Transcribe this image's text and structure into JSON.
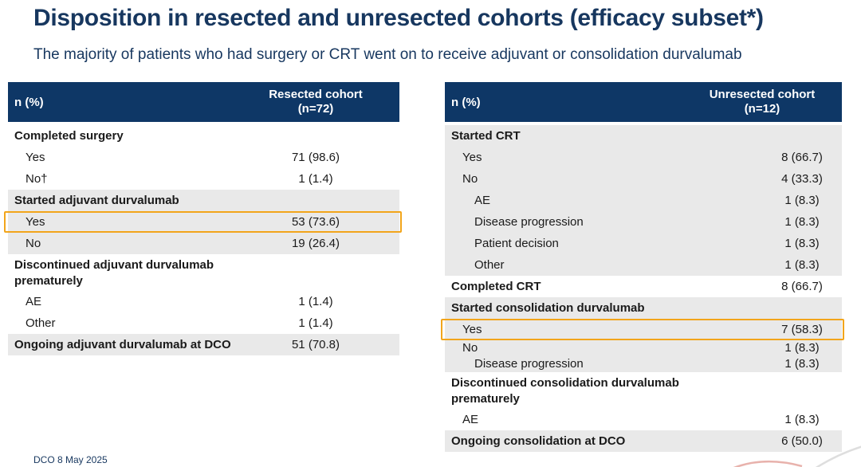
{
  "slide": {
    "title": "Disposition in resected and unresected cohorts (efficacy subset*)",
    "subtitle": "The majority of patients who had surgery or CRT went on to receive adjuvant or consolidation durvalumab",
    "footer": "DCO 8 May 2025"
  },
  "colors": {
    "navy": "#0e3766",
    "titleBlue": "#17375f",
    "rowGray": "#e9e9e9",
    "highlight": "#f2a51b",
    "ink": "#1a1a1a",
    "swooshRed": "#e8b2ac",
    "swooshGray": "#dedede"
  },
  "tables": [
    {
      "id": "resected",
      "header_label": "n (%)",
      "cohort_title": "Resected cohort",
      "cohort_n": "(n=72)",
      "rows": [
        {
          "label": "Completed surgery",
          "value": "",
          "bold": true,
          "indent": 0,
          "shaded": false
        },
        {
          "label": "Yes",
          "value": "71 (98.6)",
          "bold": false,
          "indent": 1,
          "shaded": false
        },
        {
          "label": "No†",
          "value": "1 (1.4)",
          "bold": false,
          "indent": 1,
          "shaded": false
        },
        {
          "label": "Started adjuvant durvalumab",
          "value": "",
          "bold": true,
          "indent": 0,
          "shaded": true
        },
        {
          "label": "Yes",
          "value": "53 (73.6)",
          "bold": false,
          "indent": 1,
          "shaded": true,
          "highlighted": true
        },
        {
          "label": "No",
          "value": "19 (26.4)",
          "bold": false,
          "indent": 1,
          "shaded": true
        },
        {
          "label": "Discontinued adjuvant durvalumab\nprematurely",
          "value": "",
          "bold": true,
          "indent": 0,
          "shaded": false,
          "multiline": true
        },
        {
          "label": "AE",
          "value": "1 (1.4)",
          "bold": false,
          "indent": 1,
          "shaded": false
        },
        {
          "label": "Other",
          "value": "1 (1.4)",
          "bold": false,
          "indent": 1,
          "shaded": false
        },
        {
          "label": "Ongoing adjuvant durvalumab at DCO",
          "value": "51 (70.8)",
          "bold": true,
          "indent": 0,
          "shaded": true
        }
      ]
    },
    {
      "id": "unresected",
      "header_label": "n (%)",
      "cohort_title": "Unresected cohort",
      "cohort_n": "(n=12)",
      "rows": [
        {
          "label": "Started CRT",
          "value": "",
          "bold": true,
          "indent": 0,
          "shaded": true
        },
        {
          "label": "Yes",
          "value": "8 (66.7)",
          "bold": false,
          "indent": 1,
          "shaded": true
        },
        {
          "label": "No",
          "value": "4 (33.3)",
          "bold": false,
          "indent": 1,
          "shaded": true
        },
        {
          "label": "AE",
          "value": "1 (8.3)",
          "bold": false,
          "indent": 2,
          "shaded": true
        },
        {
          "label": "Disease progression",
          "value": "1 (8.3)",
          "bold": false,
          "indent": 2,
          "shaded": true
        },
        {
          "label": "Patient decision",
          "value": "1 (8.3)",
          "bold": false,
          "indent": 2,
          "shaded": true
        },
        {
          "label": "Other",
          "value": "1 (8.3)",
          "bold": false,
          "indent": 2,
          "shaded": true
        },
        {
          "label": "Completed CRT",
          "value": "8 (66.7)",
          "bold": true,
          "indent": 0,
          "shaded": false
        },
        {
          "label": "Started consolidation durvalumab",
          "value": "",
          "bold": true,
          "indent": 0,
          "shaded": true
        },
        {
          "label": "Yes",
          "value": "7 (58.3)",
          "bold": false,
          "indent": 1,
          "shaded": true,
          "highlighted": true
        },
        {
          "label": "No",
          "value": "1 (8.3)",
          "bold": false,
          "indent": 1,
          "shaded": true,
          "tight": true
        },
        {
          "label": "Disease progression",
          "value": "1 (8.3)",
          "bold": false,
          "indent": 2,
          "shaded": true,
          "tight": true
        },
        {
          "label": "Discontinued consolidation durvalumab\nprematurely",
          "value": "",
          "bold": true,
          "indent": 0,
          "shaded": false,
          "multiline": true
        },
        {
          "label": "AE",
          "value": "1 (8.3)",
          "bold": false,
          "indent": 1,
          "shaded": false
        },
        {
          "label": "Ongoing consolidation at DCO",
          "value": "6 (50.0)",
          "bold": true,
          "indent": 0,
          "shaded": true
        }
      ]
    }
  ]
}
